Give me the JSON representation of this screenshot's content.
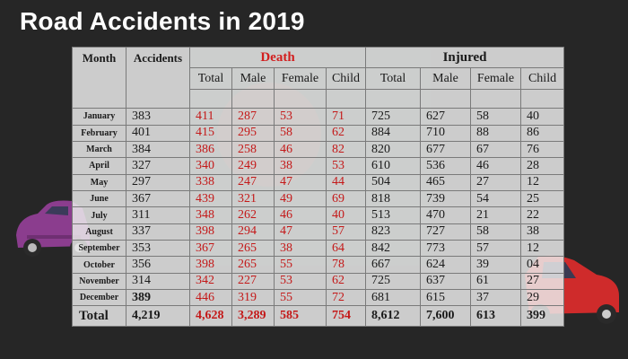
{
  "page": {
    "title": "Road Accidents in 2019"
  },
  "colors": {
    "background": "#262626",
    "death_red": "#c41818",
    "table_bg": "#ececec"
  },
  "chart_data": {
    "type": "table",
    "title": "Road Accidents in 2019",
    "headers": {
      "month": "Month",
      "accidents": "Accidents",
      "death_group": "Death",
      "injured_group": "Injured",
      "death_sub": [
        "Total",
        "Male",
        "Female",
        "Child"
      ],
      "injured_sub": [
        "Total",
        "Male",
        "Female",
        "Child"
      ]
    },
    "rows": [
      {
        "month": "January",
        "accidents": "383",
        "death": [
          "411",
          "287",
          "53",
          "71"
        ],
        "injured": [
          "725",
          "627",
          "58",
          "40"
        ]
      },
      {
        "month": "February",
        "accidents": "401",
        "death": [
          "415",
          "295",
          "58",
          "62"
        ],
        "injured": [
          "884",
          "710",
          "88",
          "86"
        ]
      },
      {
        "month": "March",
        "accidents": "384",
        "death": [
          "386",
          "258",
          "46",
          "82"
        ],
        "injured": [
          "820",
          "677",
          "67",
          "76"
        ]
      },
      {
        "month": "April",
        "accidents": "327",
        "death": [
          "340",
          "249",
          "38",
          "53"
        ],
        "injured": [
          "610",
          "536",
          "46",
          "28"
        ]
      },
      {
        "month": "May",
        "accidents": "297",
        "death": [
          "338",
          "247",
          "47",
          "44"
        ],
        "injured": [
          "504",
          "465",
          "27",
          "12"
        ]
      },
      {
        "month": "June",
        "accidents": "367",
        "death": [
          "439",
          "321",
          "49",
          "69"
        ],
        "injured": [
          "818",
          "739",
          "54",
          "25"
        ]
      },
      {
        "month": "July",
        "accidents": "311",
        "death": [
          "348",
          "262",
          "46",
          "40"
        ],
        "injured": [
          "513",
          "470",
          "21",
          "22"
        ]
      },
      {
        "month": "August",
        "accidents": "337",
        "death": [
          "398",
          "294",
          "47",
          "57"
        ],
        "injured": [
          "823",
          "727",
          "58",
          "38"
        ]
      },
      {
        "month": "September",
        "accidents": "353",
        "death": [
          "367",
          "265",
          "38",
          "64"
        ],
        "injured": [
          "842",
          "773",
          "57",
          "12"
        ]
      },
      {
        "month": "October",
        "accidents": "356",
        "death": [
          "398",
          "265",
          "55",
          "78"
        ],
        "injured": [
          "667",
          "624",
          "39",
          "04"
        ]
      },
      {
        "month": "November",
        "accidents": "314",
        "death": [
          "342",
          "227",
          "53",
          "62"
        ],
        "injured": [
          "725",
          "637",
          "61",
          "27"
        ]
      },
      {
        "month": "December",
        "accidents": "389",
        "death": [
          "446",
          "319",
          "55",
          "72"
        ],
        "injured": [
          "681",
          "615",
          "37",
          "29"
        ]
      }
    ],
    "total": {
      "month": "Total",
      "accidents": "4,219",
      "death": [
        "4,628",
        "3,289",
        "585",
        "754"
      ],
      "injured": [
        "8,612",
        "7,600",
        "613",
        "399"
      ]
    }
  }
}
